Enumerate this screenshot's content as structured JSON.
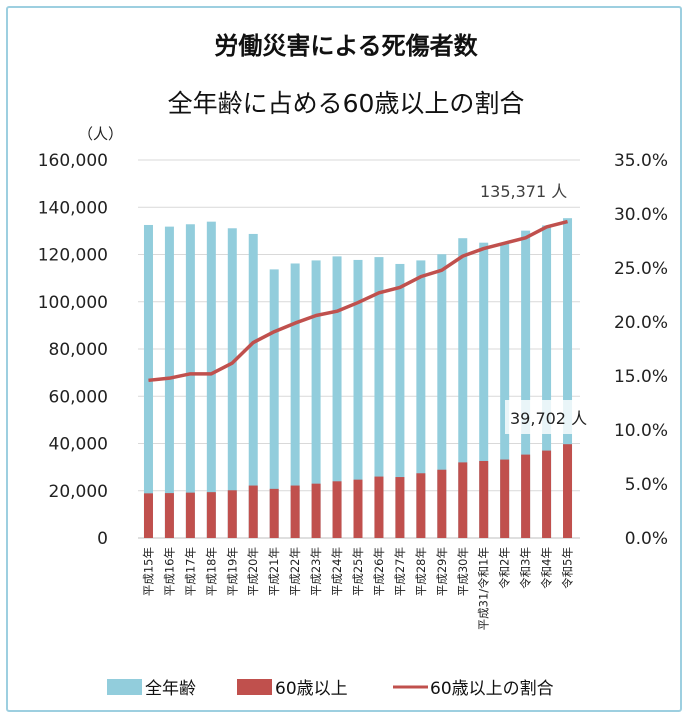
{
  "chart_data": {
    "type": "bar+line",
    "title": "労働災害による死傷者数",
    "subtitle": "全年齢に占める60歳以上の割合",
    "ylabel": "（人）",
    "ylim": [
      0,
      160000
    ],
    "y2lim": [
      0,
      35
    ],
    "yticks": [
      "0",
      "20,000",
      "40,000",
      "60,000",
      "80,000",
      "100,000",
      "120,000",
      "140,000",
      "160,000"
    ],
    "y2ticks": [
      "0.0%",
      "5.0%",
      "10.0%",
      "15.0%",
      "20.0%",
      "25.0%",
      "30.0%",
      "35.0%"
    ],
    "grid": true,
    "legend_position": "bottom",
    "categories": [
      "平成15年",
      "平成16年",
      "平成17年",
      "平成18年",
      "平成19年",
      "平成20年",
      "平成21年",
      "平成22年",
      "平成23年",
      "平成24年",
      "平成25年",
      "平成26年",
      "平成27年",
      "平成28年",
      "平成29年",
      "平成30年",
      "平成31/令和1年",
      "令和2年",
      "令和3年",
      "令和4年",
      "令和5年"
    ],
    "series": [
      {
        "name": "全年齢",
        "type": "bar",
        "axis": "left",
        "color": "#92cddc",
        "values": [
          132500,
          131800,
          132800,
          133900,
          131100,
          128700,
          113700,
          116200,
          117500,
          119200,
          117700,
          118900,
          116000,
          117500,
          120100,
          126900,
          125000,
          124500,
          130100,
          132300,
          135371
        ]
      },
      {
        "name": "60歳以上",
        "type": "bar",
        "axis": "left",
        "color": "#c0504d",
        "values": [
          18900,
          19000,
          19200,
          19400,
          20200,
          22200,
          20800,
          22200,
          23000,
          24000,
          24700,
          26000,
          25800,
          27400,
          28900,
          32000,
          32600,
          33200,
          35300,
          37000,
          39702
        ]
      },
      {
        "name": "60歳以上の割合",
        "type": "line",
        "axis": "right",
        "unit": "%",
        "color": "#c0504d",
        "values": [
          14.6,
          14.8,
          15.2,
          15.2,
          16.2,
          18.1,
          19.1,
          19.9,
          20.6,
          21.0,
          21.8,
          22.7,
          23.2,
          24.2,
          24.8,
          26.1,
          26.8,
          27.3,
          27.8,
          28.8,
          29.3
        ]
      }
    ],
    "annotations": [
      {
        "text": "135,371 人",
        "target": "全年齢 令和5年"
      },
      {
        "text": "39,702 人",
        "target": "60歳以上 令和5年"
      }
    ]
  }
}
